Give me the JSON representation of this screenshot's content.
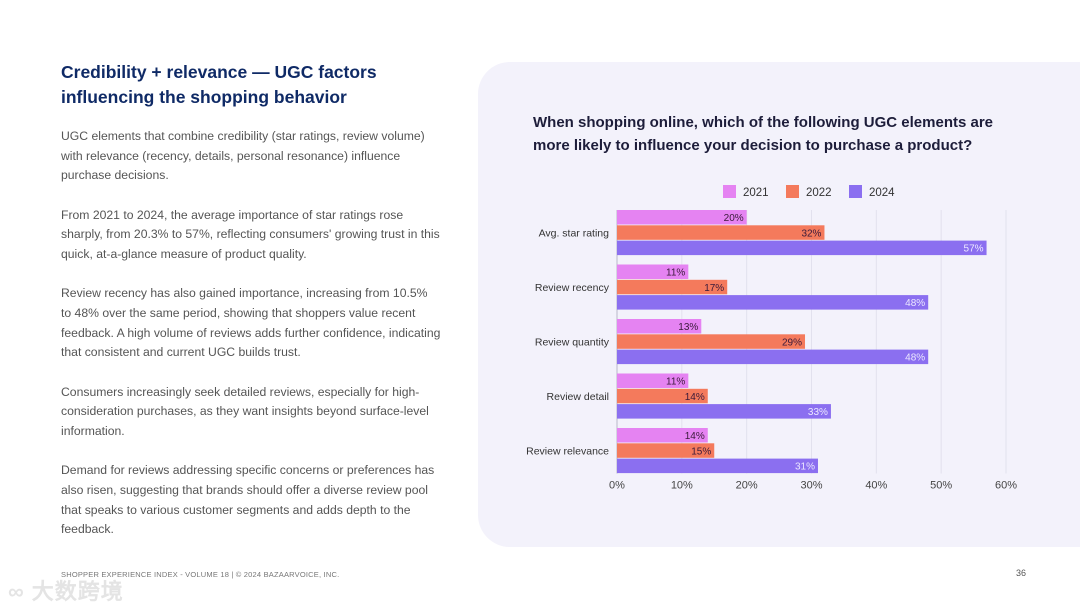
{
  "left": {
    "title": "Credibility + relevance — UGC factors influencing the shopping behavior",
    "paragraphs": [
      "UGC elements that combine credibility (star ratings, review volume) with relevance (recency, details, personal resonance) influence purchase decisions.",
      "From 2021 to 2024, the average importance of star ratings rose sharply, from 20.3% to 57%, reflecting consumers' growing trust in this quick, at-a-glance measure of product quality.",
      "Review recency has also gained importance, increasing from 10.5% to 48% over the same period, showing that shoppers value recent feedback. A high volume of reviews adds further confidence, indicating that consistent and current UGC builds trust.",
      "Consumers increasingly seek detailed reviews, especially for high-consideration purchases, as they want insights beyond surface-level information.",
      "Demand for reviews addressing specific concerns or preferences has also risen, suggesting that brands should offer a diverse review pool that speaks to various customer segments and adds depth to the feedback."
    ]
  },
  "footer": {
    "text": "SHOPPER EXPERIENCE INDEX - VOLUME 18  |  © 2024 BAZAARVOICE, INC.",
    "page_number": "36",
    "watermark": "大数跨境"
  },
  "chart_data": {
    "type": "bar",
    "orientation": "horizontal",
    "title": "When shopping online, which of the following UGC elements are more likely to influence your decision to purchase a product?",
    "categories": [
      "Avg. star rating",
      "Review recency",
      "Review quantity",
      "Review detail",
      "Review relevance"
    ],
    "series": [
      {
        "name": "2021",
        "color": "#e583f2",
        "values": [
          20,
          11,
          13,
          11,
          14
        ]
      },
      {
        "name": "2022",
        "color": "#f47a5c",
        "values": [
          32,
          17,
          29,
          14,
          15
        ]
      },
      {
        "name": "2024",
        "color": "#8b6ff0",
        "values": [
          57,
          48,
          48,
          33,
          31
        ]
      }
    ],
    "xlim": [
      0,
      60
    ],
    "xticks": [
      "0%",
      "10%",
      "20%",
      "30%",
      "40%",
      "50%",
      "60%"
    ],
    "grid": true,
    "legend": "top"
  }
}
